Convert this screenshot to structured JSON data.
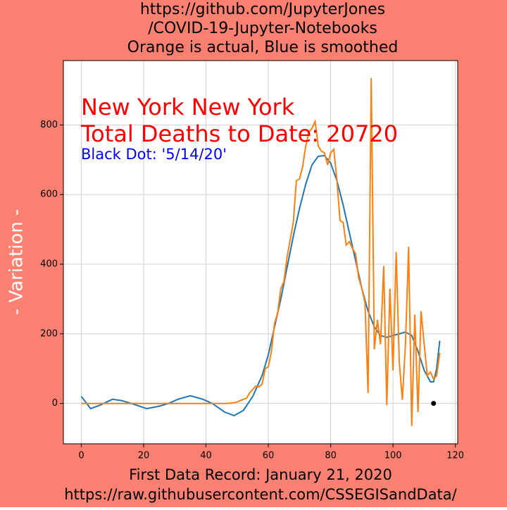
{
  "chart_data": {
    "type": "line",
    "title_lines": [
      "https://github.com/JupyterJones",
      "/COVID-19-Jupyter-Notebooks",
      "Orange is actual, Blue is smoothed"
    ],
    "xlabel_lines": [
      "First Data Record: January 21, 2020",
      "https://raw.githubusercontent.com/CSSEGISandData/"
    ],
    "ylabel": "- Variation -",
    "annotations": [
      {
        "text": "New York New York",
        "color": "#ff0000"
      },
      {
        "text": "Total Deaths to Date: 20720",
        "color": "#ff0000"
      },
      {
        "text": "Black Dot:  '5/14/20'",
        "color": "#0000ff"
      }
    ],
    "xlim": [
      -5.75,
      120.75
    ],
    "ylim": [
      -116,
      985
    ],
    "xticks": [
      0,
      20,
      40,
      60,
      80,
      100,
      120
    ],
    "yticks": [
      0,
      200,
      400,
      600,
      800
    ],
    "grid": true,
    "series": [
      {
        "color": "#1f77b4",
        "x": [
          0,
          3,
          6,
          10,
          13,
          16,
          21,
          25,
          28,
          31,
          35,
          39,
          42,
          46,
          49,
          52,
          55,
          58,
          60,
          62,
          64,
          66,
          68,
          70,
          72,
          74,
          76,
          78,
          80,
          82,
          84,
          86,
          88,
          90,
          92,
          94,
          96,
          98,
          100,
          102,
          104,
          106,
          108,
          110,
          112,
          113,
          114,
          115
        ],
        "values": [
          20,
          -15,
          -5,
          12,
          8,
          0,
          -15,
          -8,
          0,
          12,
          22,
          12,
          0,
          -25,
          -35,
          -20,
          20,
          80,
          140,
          220,
          300,
          390,
          480,
          560,
          630,
          685,
          710,
          712,
          690,
          640,
          570,
          490,
          410,
          330,
          265,
          220,
          195,
          190,
          195,
          200,
          205,
          195,
          150,
          95,
          62,
          62,
          100,
          180
        ]
      },
      {
        "color": "#ff7f0e",
        "x": [
          0,
          1,
          2,
          3,
          4,
          5,
          6,
          7,
          8,
          9,
          10,
          11,
          12,
          13,
          14,
          15,
          16,
          17,
          18,
          19,
          20,
          21,
          22,
          23,
          24,
          25,
          26,
          27,
          28,
          29,
          30,
          31,
          32,
          33,
          34,
          35,
          36,
          37,
          38,
          39,
          40,
          41,
          42,
          43,
          44,
          45,
          46,
          47,
          48,
          49,
          50,
          51,
          52,
          53,
          54,
          55,
          56,
          57,
          58,
          59,
          60,
          61,
          62,
          63,
          64,
          65,
          66,
          67,
          68,
          69,
          70,
          71,
          72,
          73,
          74,
          75,
          76,
          77,
          78,
          79,
          80,
          81,
          82,
          83,
          84,
          85,
          86,
          87,
          88,
          89,
          90,
          91,
          92,
          93,
          94,
          95,
          96,
          97,
          98,
          99,
          100,
          101,
          102,
          103,
          104,
          105,
          106,
          107,
          108,
          109,
          110,
          111,
          112,
          113,
          114,
          115
        ],
        "values": [
          0,
          0,
          0,
          0,
          0,
          0,
          0,
          0,
          0,
          0,
          0,
          0,
          0,
          0,
          0,
          0,
          0,
          0,
          0,
          0,
          0,
          0,
          0,
          0,
          0,
          0,
          0,
          0,
          0,
          0,
          0,
          0,
          0,
          0,
          0,
          0,
          0,
          0,
          0,
          0,
          0,
          0,
          0,
          0,
          0,
          0,
          0,
          0,
          1,
          2,
          4,
          8,
          12,
          15,
          30,
          40,
          50,
          48,
          55,
          100,
          105,
          150,
          230,
          260,
          330,
          350,
          420,
          470,
          520,
          640,
          645,
          680,
          740,
          780,
          790,
          810,
          740,
          725,
          720,
          685,
          720,
          730,
          640,
          525,
          520,
          455,
          465,
          445,
          430,
          360,
          330,
          290,
          30,
          935,
          155,
          240,
          170,
          395,
          -5,
          330,
          95,
          435,
          120,
          10,
          170,
          450,
          -65,
          255,
          -25,
          265,
          170,
          80,
          90,
          70,
          80,
          145
        ]
      }
    ],
    "points": [
      {
        "x": 113,
        "y": 0,
        "color": "#000000"
      }
    ]
  }
}
